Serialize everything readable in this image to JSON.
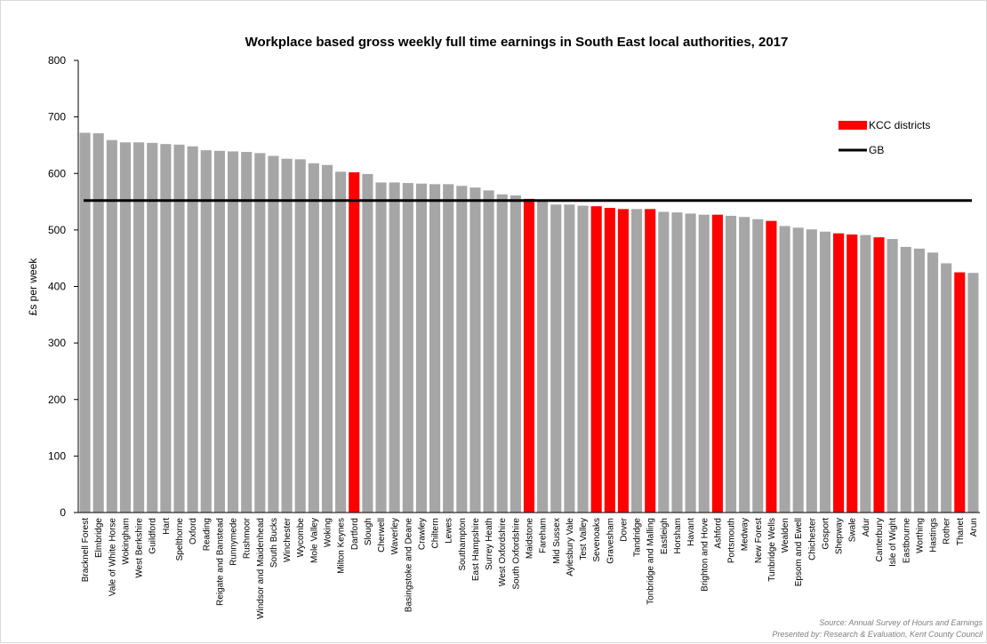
{
  "chart_data": {
    "type": "bar",
    "title": "Workplace based gross weekly full time earnings in South East local authorities, 2017",
    "ylabel": "£s per week",
    "xlabel": "",
    "ylim": [
      0,
      800
    ],
    "yticks": [
      0,
      100,
      200,
      300,
      400,
      500,
      600,
      700,
      800
    ],
    "grid": false,
    "legend_position": "top-right",
    "colors": {
      "default": "#a6a6a6",
      "kcc": "#ff0000",
      "gb": "#000000"
    },
    "categories": [
      "Bracknell Forest",
      "Elmbridge",
      "Vale of White Horse",
      "Wokingham",
      "West Berkshire",
      "Guildford",
      "Hart",
      "Spelthorne",
      "Oxford",
      "Reading",
      "Reigate and Banstead",
      "Runnymede",
      "Rushmoor",
      "Windsor and Maidenhead",
      "South Bucks",
      "Winchester",
      "Wycombe",
      "Mole Valley",
      "Woking",
      "Milton Keynes",
      "Dartford",
      "Slough",
      "Cherwell",
      "Waverley",
      "Basingstoke and Deane",
      "Crawley",
      "Chiltern",
      "Lewes",
      "Southampton",
      "East Hampshire",
      "Surrey Heath",
      "West Oxfordshire",
      "South Oxfordshire",
      "Maidstone",
      "Fareham",
      "Mid Sussex",
      "Aylesbury Vale",
      "Test Valley",
      "Sevenoaks",
      "Gravesham",
      "Dover",
      "Tandridge",
      "Tonbridge and Malling",
      "Eastleigh",
      "Horsham",
      "Havant",
      "Brighton and Hove",
      "Ashford",
      "Portsmouth",
      "Medway",
      "New Forest",
      "Tunbridge Wells",
      "Wealden",
      "Epsom and Ewell",
      "Chichester",
      "Gosport",
      "Shepway",
      "Swale",
      "Adur",
      "Canterbury",
      "Isle of Wight",
      "Eastbourne",
      "Worthing",
      "Hastings",
      "Rother",
      "Thanet",
      "Arun"
    ],
    "values": [
      672,
      671,
      659,
      655,
      655,
      654,
      652,
      651,
      648,
      641,
      640,
      639,
      638,
      636,
      631,
      626,
      625,
      618,
      615,
      603,
      602,
      599,
      584,
      584,
      583,
      582,
      581,
      581,
      578,
      575,
      570,
      563,
      561,
      555,
      553,
      545,
      545,
      543,
      542,
      539,
      537,
      537,
      537,
      532,
      531,
      529,
      527,
      527,
      525,
      523,
      519,
      516,
      507,
      504,
      501,
      497,
      494,
      492,
      491,
      487,
      484,
      470,
      467,
      460,
      441,
      425,
      424
    ],
    "kcc_districts": [
      "Dartford",
      "Maidstone",
      "Sevenoaks",
      "Gravesham",
      "Dover",
      "Tonbridge and Malling",
      "Ashford",
      "Tunbridge Wells",
      "Shepway",
      "Swale",
      "Canterbury",
      "Thanet"
    ],
    "reference_line": {
      "name": "GB",
      "value": 552
    },
    "series": [
      {
        "name": "KCC districts",
        "color": "#ff0000"
      },
      {
        "name": "GB",
        "color": "#000000"
      }
    ]
  },
  "footer": {
    "source": "Source: Annual Survey of Hours and Earnings",
    "presented": "Presented by: Research & Evaluation, Kent County Council"
  }
}
